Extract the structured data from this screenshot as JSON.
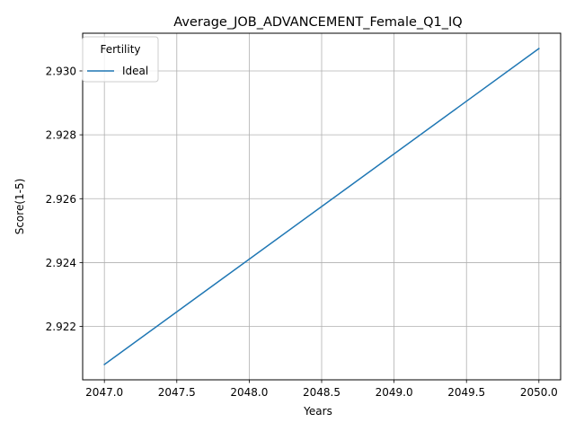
{
  "chart_data": {
    "type": "line",
    "title": "Average_JOB_ADVANCEMENT_Female_Q1_IQ",
    "xlabel": "Years",
    "ylabel": "Score(1-5)",
    "xlim": [
      2046.85,
      2050.15
    ],
    "ylim": [
      2.92033,
      2.93118
    ],
    "xticks": [
      2047.0,
      2047.5,
      2048.0,
      2048.5,
      2049.0,
      2049.5,
      2050.0
    ],
    "xtick_labels": [
      "2047.0",
      "2047.5",
      "2048.0",
      "2048.5",
      "2049.0",
      "2049.5",
      "2050.0"
    ],
    "yticks": [
      2.922,
      2.924,
      2.926,
      2.928,
      2.93
    ],
    "ytick_labels": [
      "2.922",
      "2.924",
      "2.926",
      "2.928",
      "2.930"
    ],
    "grid": true,
    "legend": {
      "title": "Fertility",
      "position": "top-left"
    },
    "series": [
      {
        "name": "Ideal",
        "color": "#1f77b4",
        "x": [
          2047,
          2050
        ],
        "y": [
          2.92081,
          2.9307
        ]
      }
    ]
  }
}
